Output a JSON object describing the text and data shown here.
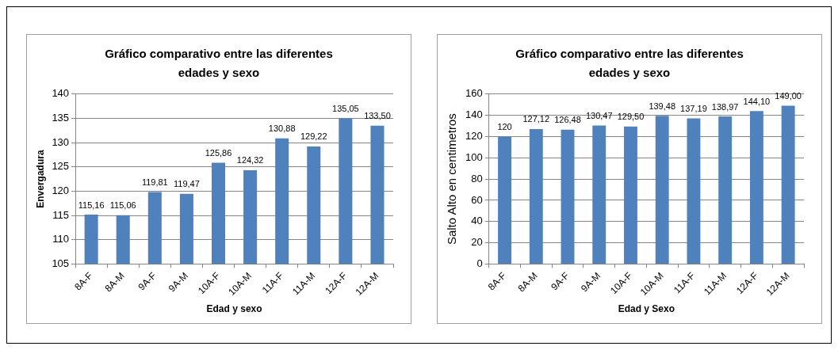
{
  "chart_data": [
    {
      "type": "bar",
      "title": "Gráfico comparativo entre las diferentes edades y sexo",
      "xlabel": "Edad y sexo",
      "ylabel": "Envergadura",
      "categories": [
        "8A-F",
        "8A-M",
        "9A-F",
        "9A-M",
        "10A-F",
        "10A-M",
        "11A-F",
        "11A-M",
        "12A-F",
        "12A-M"
      ],
      "values": [
        115.16,
        115.06,
        119.81,
        119.47,
        125.86,
        124.32,
        130.88,
        129.22,
        135.05,
        133.5
      ],
      "value_labels": [
        "115,16",
        "115,06",
        "119,81",
        "119,47",
        "125,86",
        "124,32",
        "130,88",
        "129,22",
        "135,05",
        "133,50"
      ],
      "color": "#4f81bd",
      "ylim": [
        105,
        140
      ],
      "yticks": [
        105,
        110,
        115,
        120,
        125,
        130,
        135,
        140
      ],
      "grid": "y",
      "legend": false
    },
    {
      "type": "bar",
      "title": "Gráfico comparativo entre las diferentes edades y sexo",
      "xlabel": "Edad y Sexo",
      "ylabel": "Salto Alto en centimetros",
      "categories": [
        "8A-F",
        "8A-M",
        "9A-F",
        "9A-M",
        "10A-F",
        "10A-M",
        "11A-F",
        "11A-M",
        "12A-F",
        "12A-M"
      ],
      "values": [
        120,
        127.12,
        126.48,
        130.47,
        129.5,
        139.48,
        137.19,
        138.97,
        144.1,
        149
      ],
      "value_labels": [
        "120",
        "127,12",
        "126,48",
        "130,47",
        "129,50",
        "139,48",
        "137,19",
        "138,97",
        "144,10",
        "149,00"
      ],
      "color": "#4f81bd",
      "ylim": [
        0,
        160
      ],
      "yticks": [
        0,
        20,
        40,
        60,
        80,
        100,
        120,
        140,
        160
      ],
      "grid": "y",
      "legend": false
    }
  ]
}
